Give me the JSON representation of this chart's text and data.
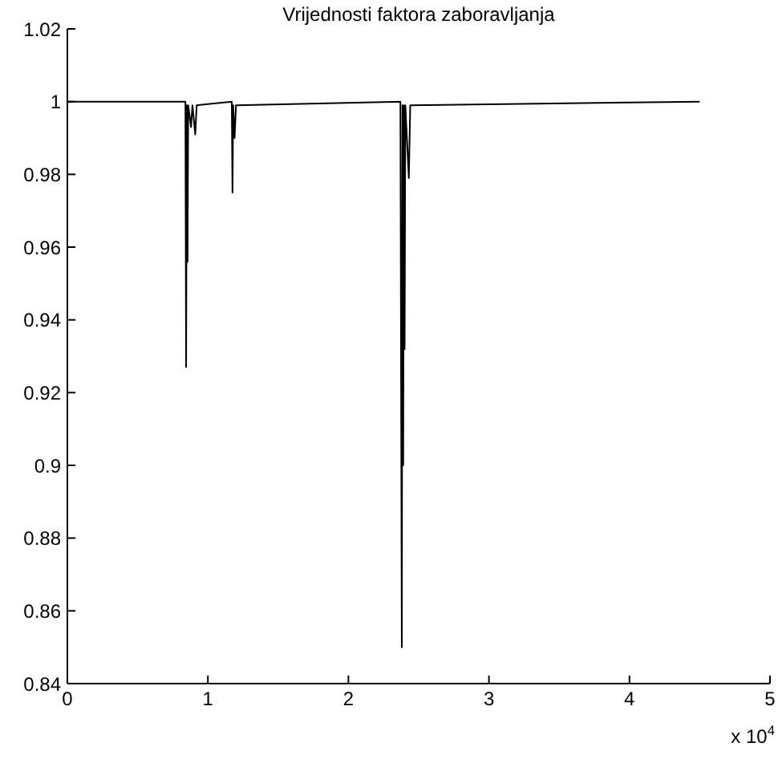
{
  "chart_data": {
    "type": "line",
    "title": "Vrijednosti faktora zaboravljanja",
    "annotations": [
      "x 10$^{4}$"
    ],
    "x": [
      0,
      0.84,
      0.845,
      0.85,
      0.855,
      0.86,
      0.88,
      0.89,
      0.91,
      0.92,
      1.17,
      1.175,
      1.18,
      1.19,
      1.2,
      2.37,
      2.38,
      2.385,
      2.39,
      2.395,
      2.4,
      2.405,
      2.43,
      2.44,
      4.5
    ],
    "series": [
      {
        "color": "#000000",
        "values": [
          1,
          1,
          0.927,
          0.999,
          0.956,
          0.999,
          0.993,
          0.999,
          0.991,
          0.999,
          1,
          0.975,
          0.999,
          0.99,
          0.999,
          1,
          0.85,
          0.999,
          0.9,
          0.999,
          0.932,
          0.999,
          0.979,
          0.999,
          1
        ]
      }
    ],
    "xlim": [
      0,
      5
    ],
    "xticks": [
      0,
      1,
      2,
      3,
      4,
      5
    ],
    "ylim": [
      0.84,
      1.02
    ],
    "yticks": [
      0.84,
      0.86,
      0.88,
      0.9,
      0.92,
      0.94,
      0.96,
      0.98,
      1,
      1.02
    ],
    "grid": false,
    "marker": "none",
    "line_style": "solid"
  }
}
